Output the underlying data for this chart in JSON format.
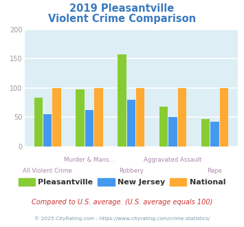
{
  "title_line1": "2019 Pleasantville",
  "title_line2": "Violent Crime Comparison",
  "title_color": "#3a7abf",
  "categories_top": [
    "",
    "Murder & Mans...",
    "",
    "Aggravated Assault",
    ""
  ],
  "categories_bottom": [
    "All Violent Crime",
    "",
    "Robbery",
    "",
    "Rape"
  ],
  "series": {
    "Pleasantville": [
      83,
      98,
      157,
      68,
      47
    ],
    "New Jersey": [
      55,
      62,
      80,
      50,
      42
    ],
    "National": [
      100,
      100,
      100,
      100,
      100
    ]
  },
  "colors": {
    "Pleasantville": "#88cc33",
    "New Jersey": "#4499ee",
    "National": "#ffaa33"
  },
  "ylim": [
    0,
    200
  ],
  "yticks": [
    0,
    50,
    100,
    150,
    200
  ],
  "background_color": "#ddeef5",
  "grid_color": "#ffffff",
  "bar_width": 0.22,
  "footnote1": "Compared to U.S. average. (U.S. average equals 100)",
  "footnote2": "© 2025 CityRating.com - https://www.cityrating.com/crime-statistics/",
  "footnote1_color": "#cc3333",
  "footnote2_color": "#7799aa",
  "xlabel_color": "#aa88aa",
  "tick_color": "#999999"
}
